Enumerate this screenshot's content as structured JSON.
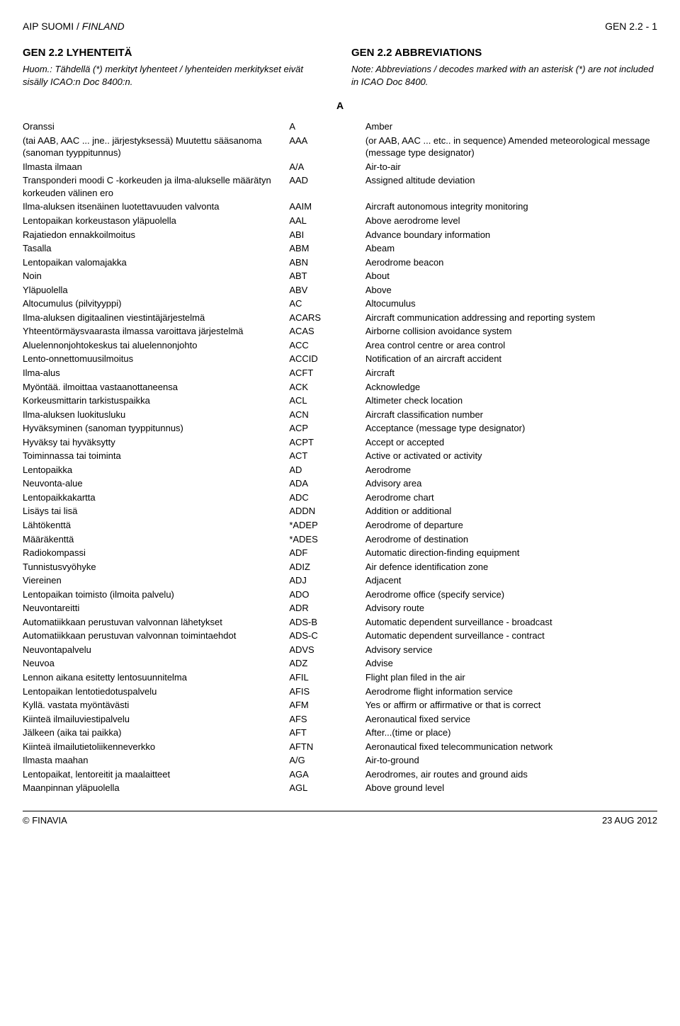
{
  "header": {
    "left_plain": "AIP SUOMI / ",
    "left_italic": "FINLAND",
    "right": "GEN 2.2 - 1"
  },
  "sections": {
    "fi": {
      "title": "GEN 2.2  LYHENTEITÄ",
      "note": "Huom.: Tähdellä (*) merkityt lyhenteet / lyhenteiden merkitykset eivät sisälly ICAO:n Doc 8400:n."
    },
    "en": {
      "title": "GEN 2.2  ABBREVIATIONS",
      "note": "Note: Abbreviations / decodes marked with an asterisk (*) are not included in ICAO Doc 8400."
    }
  },
  "letter": "A",
  "rows": [
    {
      "fi": "Oranssi",
      "code": "A",
      "en": "Amber"
    },
    {
      "fi": "(tai AAB, AAC ... jne.. järjestyksessä) Muutettu sääsanoma (sanoman tyyppitunnus)",
      "code": "AAA",
      "en": "(or AAB, AAC ... etc.. in sequence) Amended meteorological message (message type designator)"
    },
    {
      "fi": "Ilmasta ilmaan",
      "code": "A/A",
      "en": "Air-to-air"
    },
    {
      "fi": "Transponderi moodi C -korkeuden ja ilma-alukselle määrätyn korkeuden välinen ero",
      "code": "AAD",
      "en": "Assigned altitude deviation"
    },
    {
      "fi": "Ilma-aluksen itsenäinen luotettavuuden valvonta",
      "code": "AAIM",
      "en": "Aircraft autonomous integrity monitoring"
    },
    {
      "fi": "Lentopaikan korkeustason yläpuolella",
      "code": "AAL",
      "en": "Above aerodrome level"
    },
    {
      "fi": "Rajatiedon ennakkoilmoitus",
      "code": "ABI",
      "en": "Advance boundary information"
    },
    {
      "fi": "Tasalla",
      "code": "ABM",
      "en": "Abeam"
    },
    {
      "fi": "Lentopaikan valomajakka",
      "code": "ABN",
      "en": "Aerodrome beacon"
    },
    {
      "fi": "Noin",
      "code": "ABT",
      "en": "About"
    },
    {
      "fi": "Yläpuolella",
      "code": "ABV",
      "en": "Above"
    },
    {
      "fi": "Altocumulus (pilvityyppi)",
      "code": "AC",
      "en": "Altocumulus"
    },
    {
      "fi": "Ilma-aluksen digitaalinen viestintäjärjestelmä",
      "code": "ACARS",
      "en": "Aircraft communication addressing and reporting system"
    },
    {
      "fi": "Yhteentörmäysvaarasta ilmassa varoittava järjestelmä",
      "code": "ACAS",
      "en": "Airborne collision avoidance system"
    },
    {
      "fi": "Aluelennonjohtokeskus tai aluelennonjohto",
      "code": "ACC",
      "en": "Area control centre or area control"
    },
    {
      "fi": "Lento-onnettomuusilmoitus",
      "code": "ACCID",
      "en": "Notification of an aircraft accident"
    },
    {
      "fi": "Ilma-alus",
      "code": "ACFT",
      "en": "Aircraft"
    },
    {
      "fi": "Myöntää. ilmoittaa vastaanottaneensa",
      "code": "ACK",
      "en": "Acknowledge"
    },
    {
      "fi": "Korkeusmittarin tarkistuspaikka",
      "code": "ACL",
      "en": "Altimeter check location"
    },
    {
      "fi": "Ilma-aluksen luokitusluku",
      "code": "ACN",
      "en": "Aircraft classification number"
    },
    {
      "fi": "Hyväksyminen (sanoman tyyppitunnus)",
      "code": "ACP",
      "en": "Acceptance (message type designator)"
    },
    {
      "fi": "Hyväksy tai hyväksytty",
      "code": "ACPT",
      "en": "Accept or accepted"
    },
    {
      "fi": "Toiminnassa tai toiminta",
      "code": "ACT",
      "en": "Active or activated or activity"
    },
    {
      "fi": "Lentopaikka",
      "code": "AD",
      "en": "Aerodrome"
    },
    {
      "fi": "Neuvonta-alue",
      "code": "ADA",
      "en": "Advisory area"
    },
    {
      "fi": "Lentopaikkakartta",
      "code": "ADC",
      "en": "Aerodrome chart"
    },
    {
      "fi": "Lisäys tai lisä",
      "code": "ADDN",
      "en": "Addition or additional"
    },
    {
      "fi": "Lähtökenttä",
      "code": "*ADEP",
      "en": "Aerodrome of departure"
    },
    {
      "fi": "Määräkenttä",
      "code": "*ADES",
      "en": "Aerodrome of destination"
    },
    {
      "fi": "Radiokompassi",
      "code": "ADF",
      "en": "Automatic direction-finding equipment"
    },
    {
      "fi": "Tunnistusvyöhyke",
      "code": "ADIZ",
      "en": "Air defence identification zone"
    },
    {
      "fi": "Viereinen",
      "code": "ADJ",
      "en": "Adjacent"
    },
    {
      "fi": "Lentopaikan toimisto (ilmoita palvelu)",
      "code": "ADO",
      "en": "Aerodrome office (specify service)"
    },
    {
      "fi": "Neuvontareitti",
      "code": "ADR",
      "en": "Advisory route"
    },
    {
      "fi": "Automatiikkaan perustuvan valvonnan lähetykset",
      "code": "ADS-B",
      "en": "Automatic dependent surveillance - broadcast"
    },
    {
      "fi": "Automatiikkaan perustuvan valvonnan toimintaehdot",
      "code": "ADS-C",
      "en": "Automatic dependent surveillance - contract"
    },
    {
      "fi": "Neuvontapalvelu",
      "code": "ADVS",
      "en": "Advisory service"
    },
    {
      "fi": "Neuvoa",
      "code": "ADZ",
      "en": "Advise"
    },
    {
      "fi": "Lennon aikana esitetty lentosuunnitelma",
      "code": "AFIL",
      "en": "Flight plan filed in the air"
    },
    {
      "fi": "Lentopaikan lentotiedotuspalvelu",
      "code": "AFIS",
      "en": "Aerodrome flight information service"
    },
    {
      "fi": "Kyllä. vastata myöntävästi",
      "code": "AFM",
      "en": "Yes or affirm or affirmative or that is correct"
    },
    {
      "fi": "Kiinteä ilmailuviestipalvelu",
      "code": "AFS",
      "en": "Aeronautical fixed service"
    },
    {
      "fi": "Jälkeen (aika tai paikka)",
      "code": "AFT",
      "en": "After...(time or place)"
    },
    {
      "fi": "Kiinteä ilmailutietoliikenneverkko",
      "code": "AFTN",
      "en": "Aeronautical fixed telecommunication network"
    },
    {
      "fi": "Ilmasta maahan",
      "code": "A/G",
      "en": "Air-to-ground"
    },
    {
      "fi": "Lentopaikat, lentoreitit ja maalaitteet",
      "code": "AGA",
      "en": "Aerodromes, air routes and ground aids"
    },
    {
      "fi": "Maanpinnan yläpuolella",
      "code": "AGL",
      "en": "Above ground level"
    }
  ],
  "footer": {
    "left": "© FINAVIA",
    "right": "23 AUG 2012"
  }
}
